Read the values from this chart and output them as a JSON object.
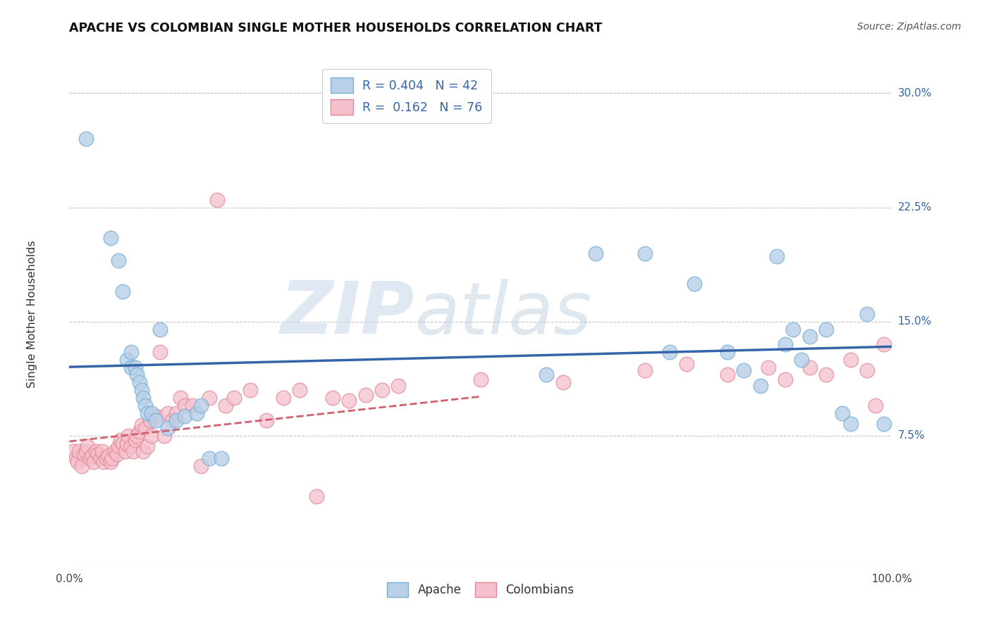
{
  "title": "APACHE VS COLOMBIAN SINGLE MOTHER HOUSEHOLDS CORRELATION CHART",
  "source": "Source: ZipAtlas.com",
  "ylabel": "Single Mother Households",
  "xlim": [
    0,
    1.0
  ],
  "ylim": [
    -0.01,
    0.32
  ],
  "yticks": [
    0.075,
    0.15,
    0.225,
    0.3
  ],
  "yticklabels": [
    "7.5%",
    "15.0%",
    "22.5%",
    "30.0%"
  ],
  "apache_color": "#b8d0e8",
  "apache_edge": "#7aafd4",
  "colombian_color": "#f5c0cc",
  "colombian_edge": "#e08898",
  "trend_apache_color": "#3465a8",
  "trend_colombian_color": "#d06070",
  "legend_apache_label": "R = 0.404   N = 42",
  "legend_colombian_label": "R =  0.162   N = 76",
  "watermark_zip": "ZIP",
  "watermark_atlas": "atlas",
  "apache_x": [
    0.02,
    0.05,
    0.06,
    0.065,
    0.07,
    0.075,
    0.075,
    0.08,
    0.082,
    0.085,
    0.088,
    0.09,
    0.092,
    0.095,
    0.1,
    0.105,
    0.11,
    0.12,
    0.13,
    0.14,
    0.155,
    0.16,
    0.17,
    0.185,
    0.58,
    0.64,
    0.7,
    0.73,
    0.76,
    0.8,
    0.82,
    0.84,
    0.86,
    0.87,
    0.88,
    0.89,
    0.9,
    0.92,
    0.94,
    0.95,
    0.97,
    0.99
  ],
  "apache_y": [
    0.27,
    0.205,
    0.19,
    0.17,
    0.125,
    0.13,
    0.12,
    0.12,
    0.115,
    0.11,
    0.105,
    0.1,
    0.095,
    0.09,
    0.09,
    0.085,
    0.145,
    0.08,
    0.085,
    0.088,
    0.09,
    0.095,
    0.06,
    0.06,
    0.115,
    0.195,
    0.195,
    0.13,
    0.175,
    0.13,
    0.118,
    0.108,
    0.193,
    0.135,
    0.145,
    0.125,
    0.14,
    0.145,
    0.09,
    0.083,
    0.155,
    0.083
  ],
  "colombian_x": [
    0.005,
    0.008,
    0.01,
    0.012,
    0.015,
    0.018,
    0.02,
    0.022,
    0.025,
    0.028,
    0.03,
    0.032,
    0.035,
    0.038,
    0.04,
    0.042,
    0.045,
    0.048,
    0.05,
    0.052,
    0.055,
    0.058,
    0.06,
    0.062,
    0.065,
    0.068,
    0.07,
    0.072,
    0.075,
    0.078,
    0.08,
    0.082,
    0.085,
    0.088,
    0.09,
    0.092,
    0.095,
    0.098,
    0.1,
    0.105,
    0.11,
    0.115,
    0.12,
    0.125,
    0.13,
    0.135,
    0.14,
    0.15,
    0.16,
    0.17,
    0.18,
    0.19,
    0.2,
    0.22,
    0.24,
    0.26,
    0.28,
    0.3,
    0.32,
    0.34,
    0.36,
    0.38,
    0.4,
    0.5,
    0.6,
    0.7,
    0.75,
    0.8,
    0.85,
    0.87,
    0.9,
    0.92,
    0.95,
    0.97,
    0.98,
    0.99
  ],
  "colombian_y": [
    0.065,
    0.06,
    0.058,
    0.065,
    0.055,
    0.063,
    0.065,
    0.068,
    0.06,
    0.062,
    0.058,
    0.065,
    0.063,
    0.06,
    0.065,
    0.058,
    0.06,
    0.062,
    0.058,
    0.06,
    0.065,
    0.063,
    0.068,
    0.072,
    0.07,
    0.065,
    0.07,
    0.075,
    0.068,
    0.065,
    0.072,
    0.075,
    0.078,
    0.082,
    0.065,
    0.08,
    0.068,
    0.085,
    0.075,
    0.088,
    0.13,
    0.075,
    0.09,
    0.085,
    0.09,
    0.1,
    0.095,
    0.095,
    0.055,
    0.1,
    0.23,
    0.095,
    0.1,
    0.105,
    0.085,
    0.1,
    0.105,
    0.035,
    0.1,
    0.098,
    0.102,
    0.105,
    0.108,
    0.112,
    0.11,
    0.118,
    0.122,
    0.115,
    0.12,
    0.112,
    0.12,
    0.115,
    0.125,
    0.118,
    0.095,
    0.135
  ]
}
